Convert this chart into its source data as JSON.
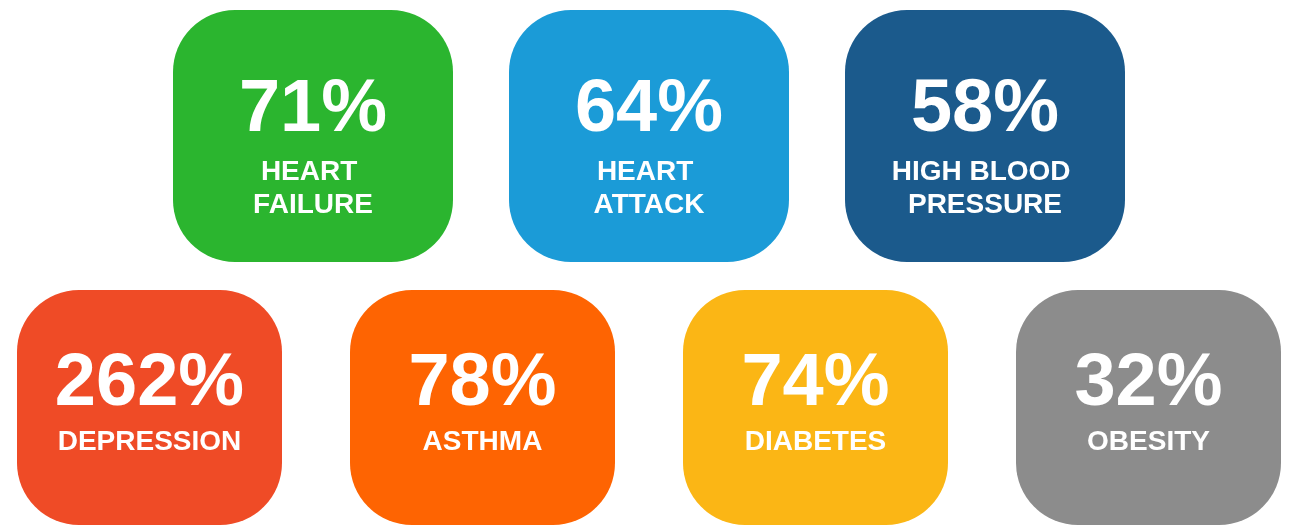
{
  "chart_data": {
    "type": "other",
    "categories": [
      "HEART FAILURE",
      "HEART ATTACK",
      "HIGH BLOOD PRESSURE",
      "DEPRESSION",
      "ASTHMA",
      "DIABETES",
      "OBESITY"
    ],
    "values": [
      71,
      64,
      58,
      262,
      78,
      74,
      32
    ],
    "value_labels": [
      "71%",
      "64%",
      "58%",
      "262%",
      "78%",
      "74%",
      "32%"
    ],
    "colors": [
      "#2bb52f",
      "#1b9bd7",
      "#1b5a8c",
      "#ef4b26",
      "#fe6402",
      "#fbb615",
      "#8c8c8c"
    ]
  }
}
